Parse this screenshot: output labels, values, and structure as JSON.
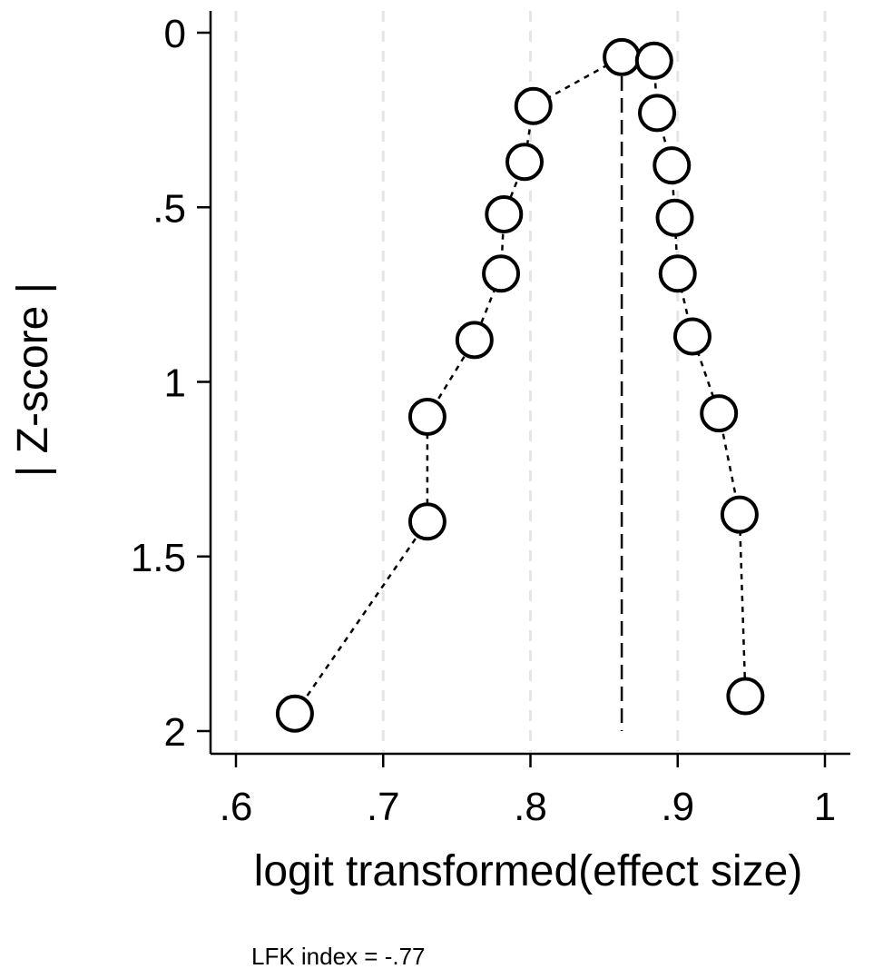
{
  "chart_data": {
    "type": "scatter",
    "title": "",
    "xlabel": "logit transformed(effect size)",
    "ylabel": "| Z-score |",
    "xlim": [
      0.6,
      1.0
    ],
    "ylim": [
      0,
      2
    ],
    "y_inverted": true,
    "x_ticks": [
      ".6",
      ".7",
      ".8",
      ".9",
      "1"
    ],
    "x_tick_values": [
      0.6,
      0.7,
      0.8,
      0.9,
      1.0
    ],
    "y_ticks": [
      "0",
      ".5",
      "1",
      "1.5",
      "2"
    ],
    "y_tick_values": [
      0,
      0.5,
      1.0,
      1.5,
      2.0
    ],
    "grid": "vertical dashed",
    "reference_line_x": 0.862,
    "points": [
      {
        "x": 0.64,
        "y": 1.95
      },
      {
        "x": 0.73,
        "y": 1.4
      },
      {
        "x": 0.73,
        "y": 1.1
      },
      {
        "x": 0.762,
        "y": 0.88
      },
      {
        "x": 0.78,
        "y": 0.69
      },
      {
        "x": 0.782,
        "y": 0.52
      },
      {
        "x": 0.796,
        "y": 0.37
      },
      {
        "x": 0.802,
        "y": 0.21
      },
      {
        "x": 0.862,
        "y": 0.07
      },
      {
        "x": 0.884,
        "y": 0.08
      },
      {
        "x": 0.886,
        "y": 0.23
      },
      {
        "x": 0.896,
        "y": 0.38
      },
      {
        "x": 0.898,
        "y": 0.53
      },
      {
        "x": 0.9,
        "y": 0.69
      },
      {
        "x": 0.91,
        "y": 0.87
      },
      {
        "x": 0.928,
        "y": 1.09
      },
      {
        "x": 0.942,
        "y": 1.38
      },
      {
        "x": 0.946,
        "y": 1.9
      }
    ],
    "connected": "dotted",
    "colors": {
      "marker_fill": "#ffffff",
      "marker_stroke": "#000000",
      "grid": "#e6e6e6"
    },
    "annotation": "LFK index = -.77"
  }
}
